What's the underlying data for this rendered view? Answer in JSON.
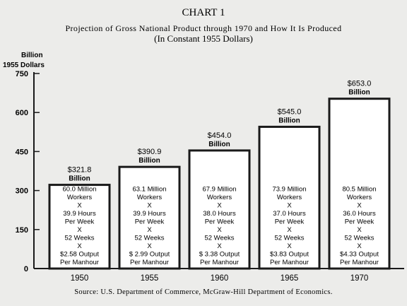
{
  "chart_data": {
    "type": "bar",
    "title": "CHART 1",
    "subtitle": "Projection of Gross National Product through 1970 and How It Is Produced",
    "subtitle2": "(In Constant 1955 Dollars)",
    "ylabel_line1": "Billion",
    "ylabel_line2": "1955 Dollars",
    "yticks": [
      0,
      150,
      300,
      450,
      600,
      750
    ],
    "ylim": [
      0,
      750
    ],
    "categories": [
      "1950",
      "1955",
      "1960",
      "1965",
      "1970"
    ],
    "values": [
      321.8,
      390.9,
      454.0,
      545.0,
      653.0
    ],
    "value_labels": [
      [
        "$321.8",
        "Billion"
      ],
      [
        "$390.9",
        "Billion"
      ],
      [
        "$454.0",
        "Billion"
      ],
      [
        "$545.0",
        "Billion"
      ],
      [
        "$653.0",
        "Billion"
      ]
    ],
    "bar_text": [
      [
        "60.0 Million",
        "Workers",
        "X",
        "39.9 Hours",
        "Per Week",
        "X",
        "52 Weeks",
        "X",
        "$2.58 Output",
        "Per Manhour"
      ],
      [
        "63.1 Million",
        "Workers",
        "X",
        "39.9 Hours",
        "Per Week",
        "X",
        "52 Weeks",
        "X",
        "$ 2.99 Output",
        "Per Manhour"
      ],
      [
        "67.9 Million",
        "Workers",
        "X",
        "38.0 Hours",
        "Per Week",
        "X",
        "52 Weeks",
        "X",
        "$ 3.38 Output",
        "Per Manhour"
      ],
      [
        "73.9 Million",
        "Workers",
        "X",
        "37.0 Hours",
        "Per Week",
        "X",
        "52 Weeks",
        "X",
        "$3.83 Output",
        "Per Manhour"
      ],
      [
        "80.5 Million",
        "Workers",
        "X",
        "36.0 Hours",
        "Per Week",
        "X",
        "52 Weeks",
        "X",
        "$4.33 Output",
        "Per Manhour"
      ]
    ],
    "source": "Source: U.S. Department of Commerce, McGraw-Hill Department of Economics.",
    "colors": {
      "background": "#ececea",
      "ink": "#1a1a1a",
      "bar_fill": "#ffffff"
    },
    "grid": false,
    "legend": "none"
  }
}
